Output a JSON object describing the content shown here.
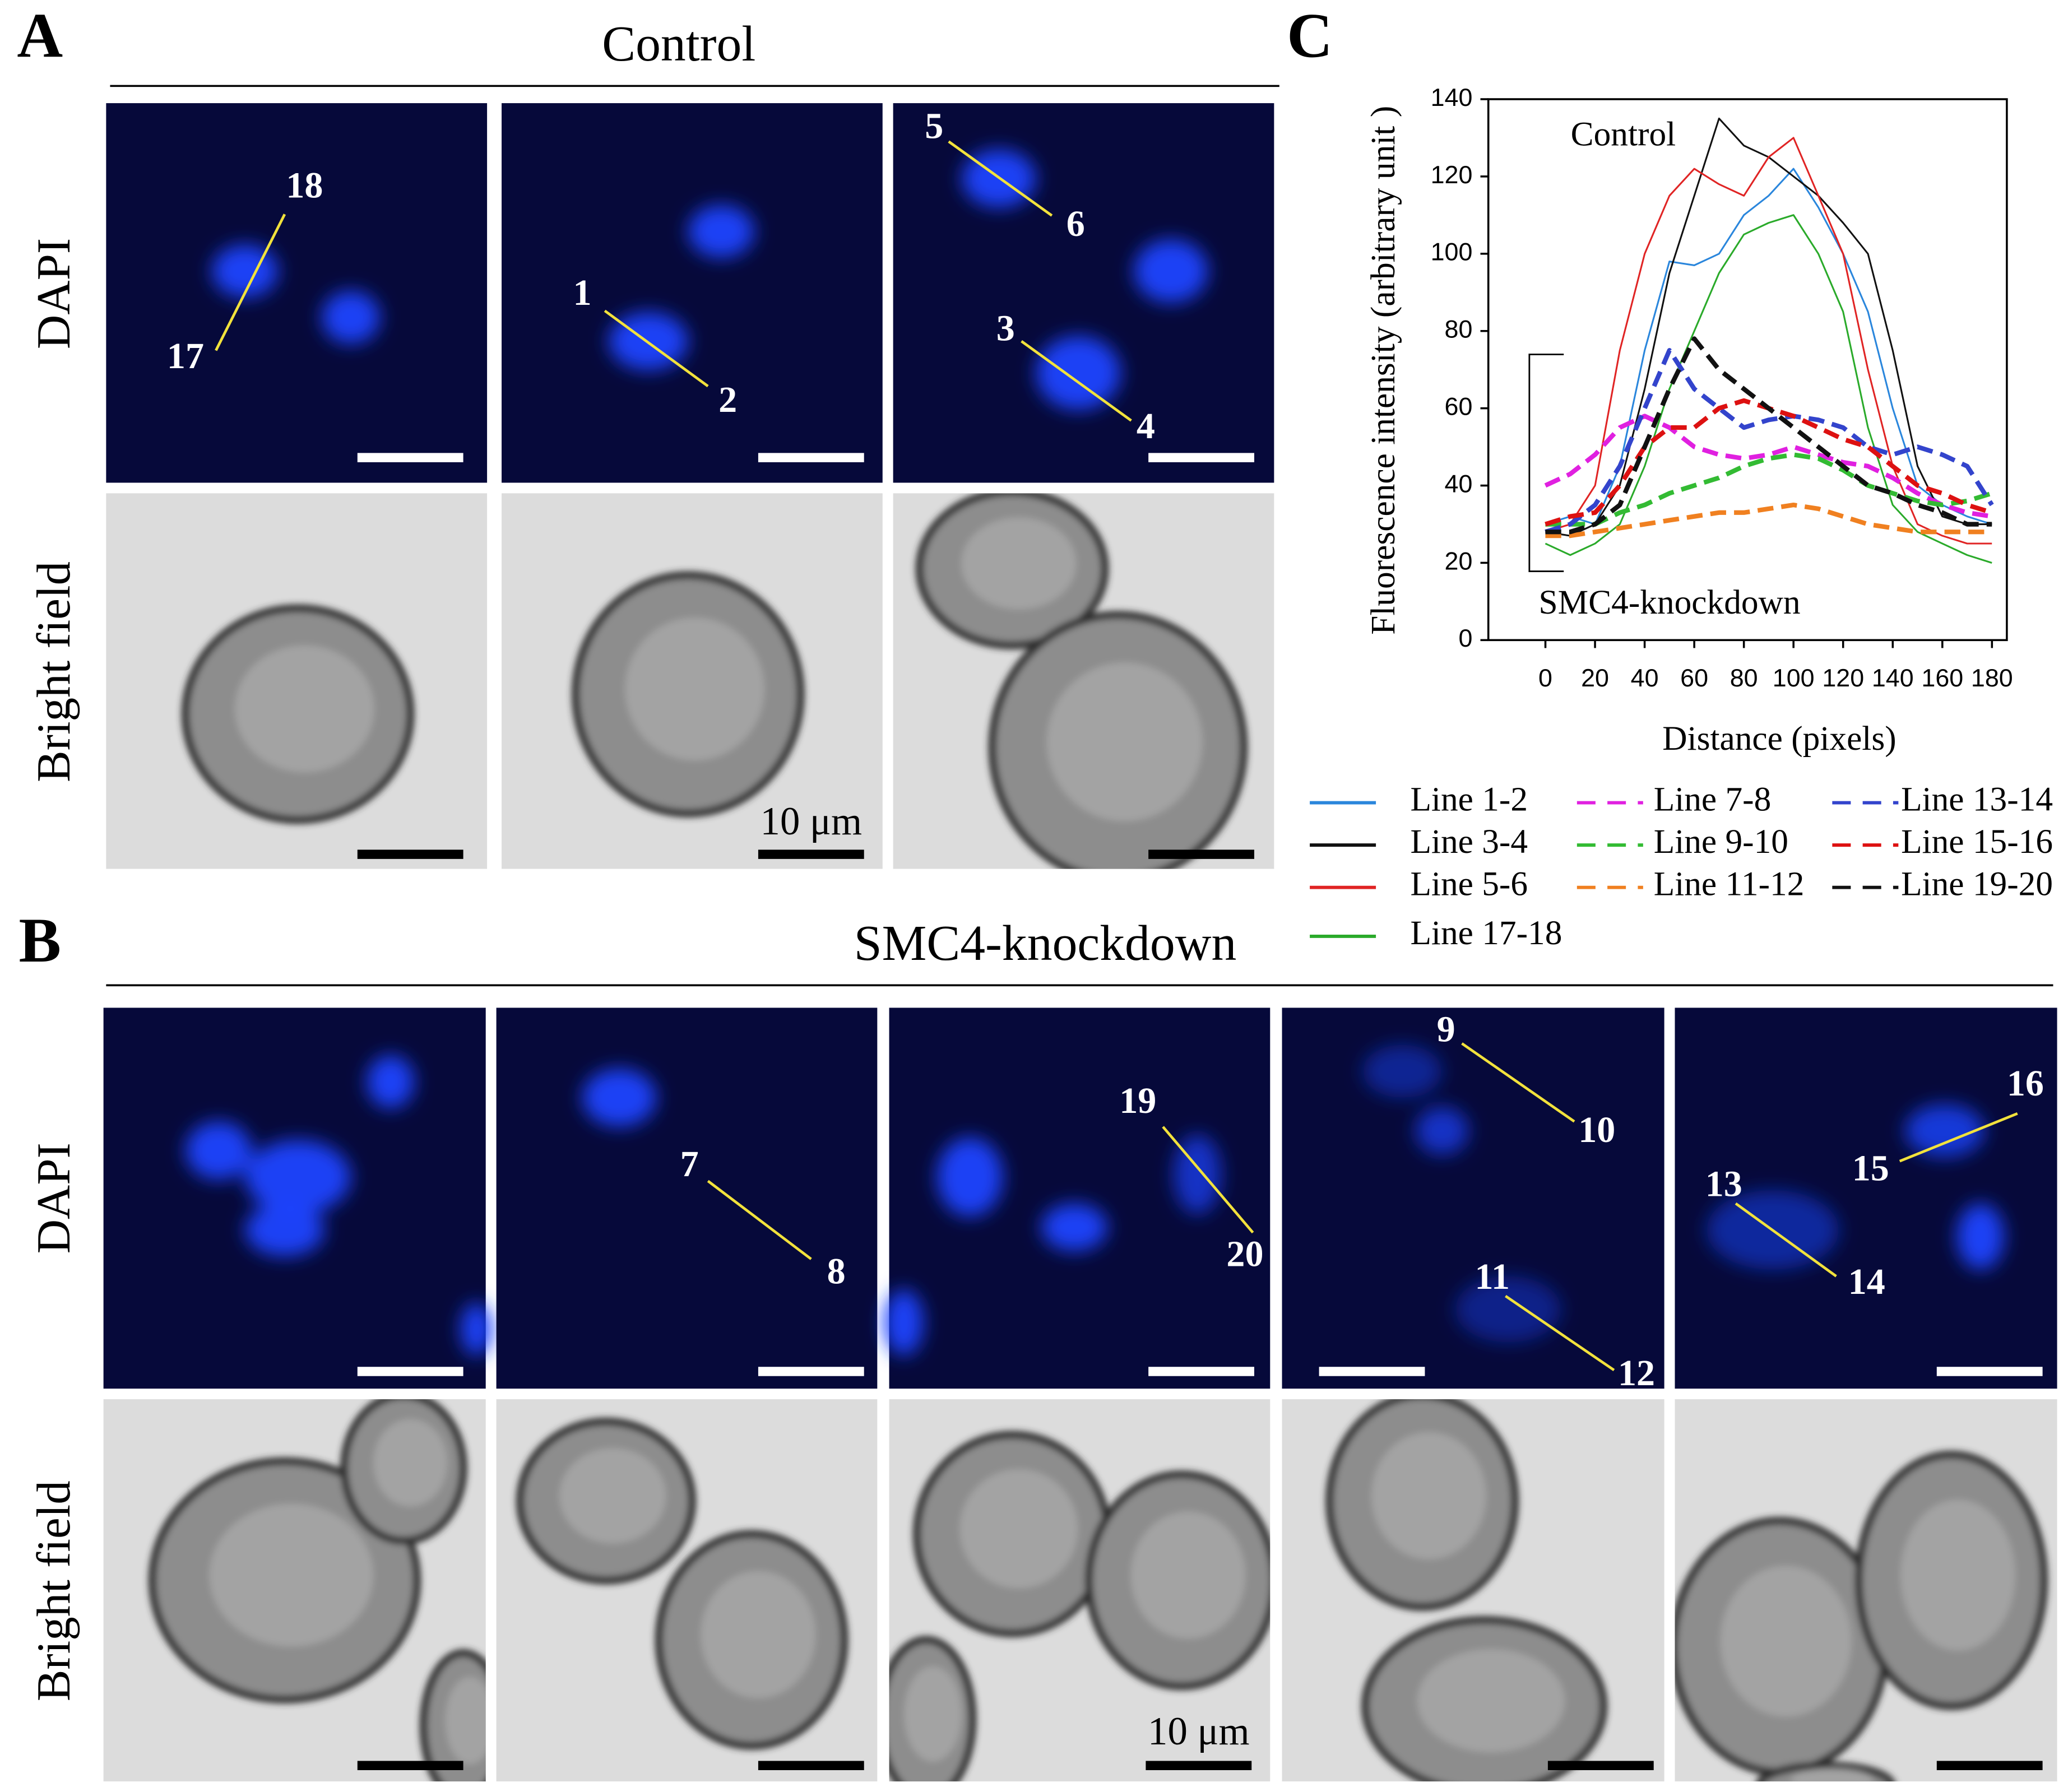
{
  "panel_labels": [
    "A",
    "B",
    "C"
  ],
  "panel_a": {
    "title": "Control",
    "row_labels": [
      "DAPI",
      "Bright field"
    ],
    "markers": [
      "17",
      "18",
      "1",
      "2",
      "5",
      "6",
      "3",
      "4"
    ],
    "scale_label": "10 μm"
  },
  "panel_b": {
    "title": "SMC4-knockdown",
    "row_labels": [
      "DAPI",
      "Bright field"
    ],
    "markers": [
      "7",
      "8",
      "19",
      "20",
      "9",
      "10",
      "11",
      "12",
      "15",
      "16",
      "13",
      "14"
    ],
    "scale_label": "10 μm"
  },
  "chart_data": {
    "type": "line",
    "x_label": "Distance (pixels)",
    "y_label": "Fluorescence intensity (arbitrary unit )",
    "annotations": [
      "Control",
      "SMC4-knockdown"
    ],
    "x": [
      0,
      10,
      20,
      30,
      40,
      50,
      60,
      70,
      80,
      90,
      100,
      110,
      120,
      130,
      140,
      150,
      160,
      170,
      180
    ],
    "xlim": [
      -23,
      186
    ],
    "xticks": [
      0,
      20,
      40,
      60,
      80,
      100,
      120,
      140,
      160,
      180
    ],
    "ylim": [
      0,
      140
    ],
    "yticks": [
      0,
      20,
      40,
      60,
      80,
      100,
      120,
      140
    ],
    "series": [
      {
        "name": "Line 1-2",
        "color": "#2a86dc",
        "dashed": false,
        "values": [
          30,
          32,
          30,
          45,
          75,
          98,
          97,
          100,
          110,
          115,
          122,
          112,
          100,
          85,
          60,
          40,
          35,
          32,
          30
        ]
      },
      {
        "name": "Line 3-4",
        "color": "#111111",
        "dashed": false,
        "values": [
          28,
          27,
          30,
          40,
          65,
          95,
          115,
          135,
          128,
          125,
          120,
          115,
          108,
          100,
          75,
          45,
          32,
          30,
          30
        ]
      },
      {
        "name": "Line 5-6",
        "color": "#e02424",
        "dashed": false,
        "values": [
          28,
          30,
          40,
          75,
          100,
          115,
          122,
          118,
          115,
          125,
          130,
          115,
          100,
          70,
          45,
          30,
          27,
          25,
          25
        ]
      },
      {
        "name": "Line 17-18",
        "color": "#2aaa2a",
        "dashed": false,
        "values": [
          25,
          22,
          25,
          30,
          45,
          65,
          80,
          95,
          105,
          108,
          110,
          100,
          85,
          55,
          35,
          28,
          25,
          22,
          20
        ]
      },
      {
        "name": "Line 7-8",
        "color": "#e020e0",
        "dashed": true,
        "values": [
          40,
          43,
          48,
          55,
          58,
          55,
          50,
          48,
          47,
          48,
          50,
          48,
          46,
          45,
          42,
          38,
          35,
          33,
          32
        ]
      },
      {
        "name": "Line 9-10",
        "color": "#33bb33",
        "dashed": true,
        "values": [
          30,
          30,
          30,
          33,
          35,
          38,
          40,
          42,
          45,
          47,
          48,
          47,
          44,
          40,
          38,
          36,
          35,
          36,
          38
        ]
      },
      {
        "name": "Line 11-12",
        "color": "#f08020",
        "dashed": true,
        "values": [
          27,
          27,
          28,
          29,
          30,
          31,
          32,
          33,
          33,
          34,
          35,
          34,
          32,
          30,
          29,
          28,
          28,
          28,
          28
        ]
      },
      {
        "name": "Line 13-14",
        "color": "#3344cc",
        "dashed": true,
        "values": [
          28,
          30,
          35,
          45,
          60,
          75,
          65,
          60,
          55,
          57,
          58,
          57,
          55,
          50,
          48,
          50,
          48,
          45,
          35
        ]
      },
      {
        "name": "Line 15-16",
        "color": "#dd1111",
        "dashed": true,
        "values": [
          30,
          32,
          33,
          40,
          50,
          55,
          55,
          60,
          62,
          60,
          58,
          55,
          52,
          50,
          45,
          40,
          38,
          35,
          33
        ]
      },
      {
        "name": "Line 19-20",
        "color": "#111111",
        "dashed": true,
        "values": [
          28,
          28,
          30,
          35,
          50,
          65,
          78,
          70,
          65,
          60,
          55,
          50,
          45,
          40,
          38,
          35,
          33,
          30,
          30
        ]
      }
    ]
  }
}
